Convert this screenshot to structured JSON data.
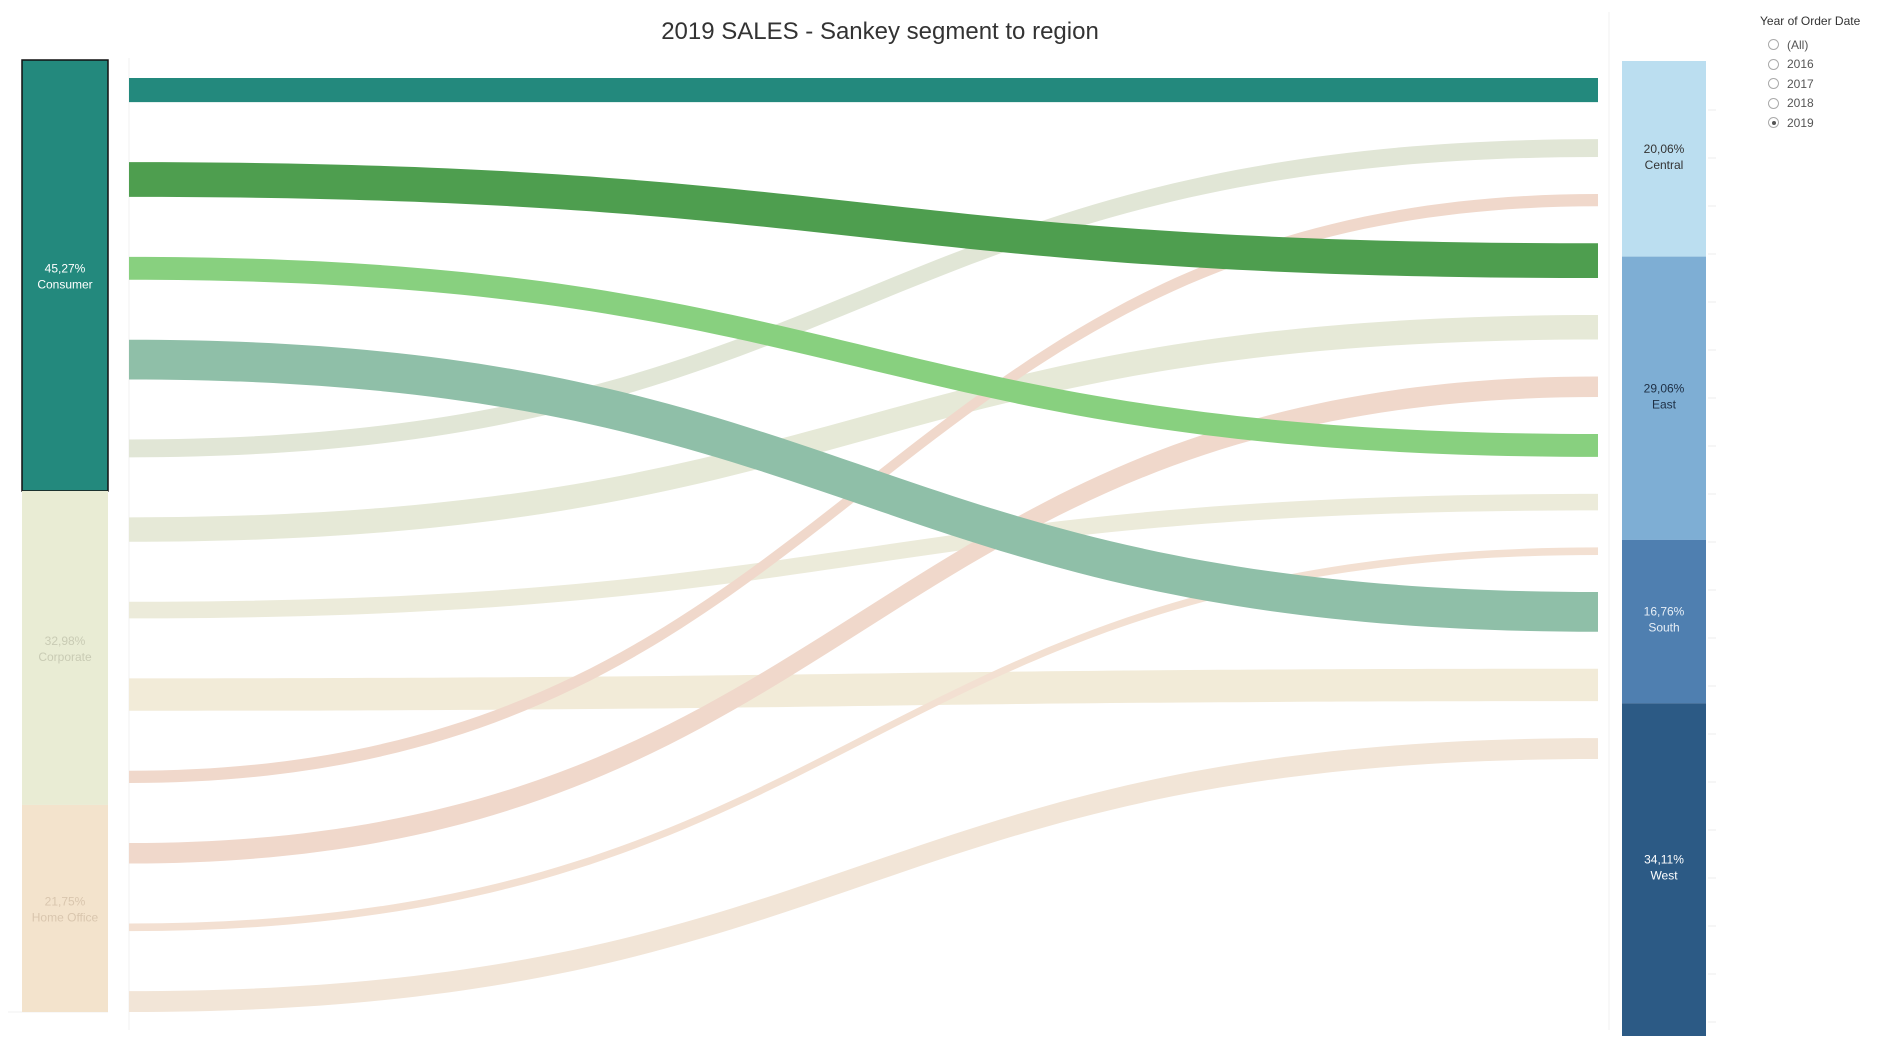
{
  "title": "2019 SALES - Sankey segment to region",
  "filter": {
    "title": "Year of Order Date",
    "options": [
      "(All)",
      "2016",
      "2017",
      "2018",
      "2019"
    ],
    "selected": "2019"
  },
  "chart_data": {
    "type": "sankey",
    "title": "2019 SALES - Sankey segment to region",
    "sources": [
      {
        "name": "Consumer",
        "pct_label": "45,27%",
        "share": 45.27,
        "color": "#23897d",
        "label_color": "#ffffff",
        "highlighted": true
      },
      {
        "name": "Corporate",
        "pct_label": "32,98%",
        "share": 32.98,
        "color": "#e9ecd4",
        "label_color": "#c9cbb4",
        "highlighted": false
      },
      {
        "name": "Home Office",
        "pct_label": "21,75%",
        "share": 21.75,
        "color": "#f3e3cc",
        "label_color": "#d9c6ae",
        "highlighted": false
      }
    ],
    "targets": [
      {
        "name": "Central",
        "pct_label": "20,06%",
        "share": 20.06,
        "color": "#bbdef0",
        "label_color": "#333333"
      },
      {
        "name": "East",
        "pct_label": "29,06%",
        "share": 29.06,
        "color": "#7eaed4",
        "label_color": "#1e2f44"
      },
      {
        "name": "South",
        "pct_label": "16,76%",
        "share": 16.76,
        "color": "#4f7fb0",
        "label_color": "#e6eef6"
      },
      {
        "name": "West",
        "pct_label": "34,11%",
        "share": 34.11,
        "color": "#2c5a85",
        "label_color": "#ffffff"
      }
    ],
    "flows": [
      {
        "source": "Consumer",
        "target": "Central",
        "value": 7.3,
        "color": "#23897d"
      },
      {
        "source": "Consumer",
        "target": "East",
        "value": 10.5,
        "color": "#4e9e4f"
      },
      {
        "source": "Consumer",
        "target": "South",
        "value": 6.9,
        "color": "#88d07f"
      },
      {
        "source": "Consumer",
        "target": "West",
        "value": 12.0,
        "color": "#8fbfa8"
      },
      {
        "source": "Corporate",
        "target": "Central",
        "value": 5.4,
        "color": "#e1e6d6"
      },
      {
        "source": "Corporate",
        "target": "East",
        "value": 7.4,
        "color": "#e6e9d7"
      },
      {
        "source": "Corporate",
        "target": "South",
        "value": 5.0,
        "color": "#ecebda"
      },
      {
        "source": "Corporate",
        "target": "West",
        "value": 9.8,
        "color": "#f2ebd8"
      },
      {
        "source": "Home Office",
        "target": "Central",
        "value": 3.7,
        "color": "#f0d8cb"
      },
      {
        "source": "Home Office",
        "target": "East",
        "value": 6.2,
        "color": "#f0d8cb"
      },
      {
        "source": "Home Office",
        "target": "South",
        "value": 2.3,
        "color": "#f3e0d2"
      },
      {
        "source": "Home Office",
        "target": "West",
        "value": 6.3,
        "color": "#f2e5d7"
      }
    ]
  }
}
